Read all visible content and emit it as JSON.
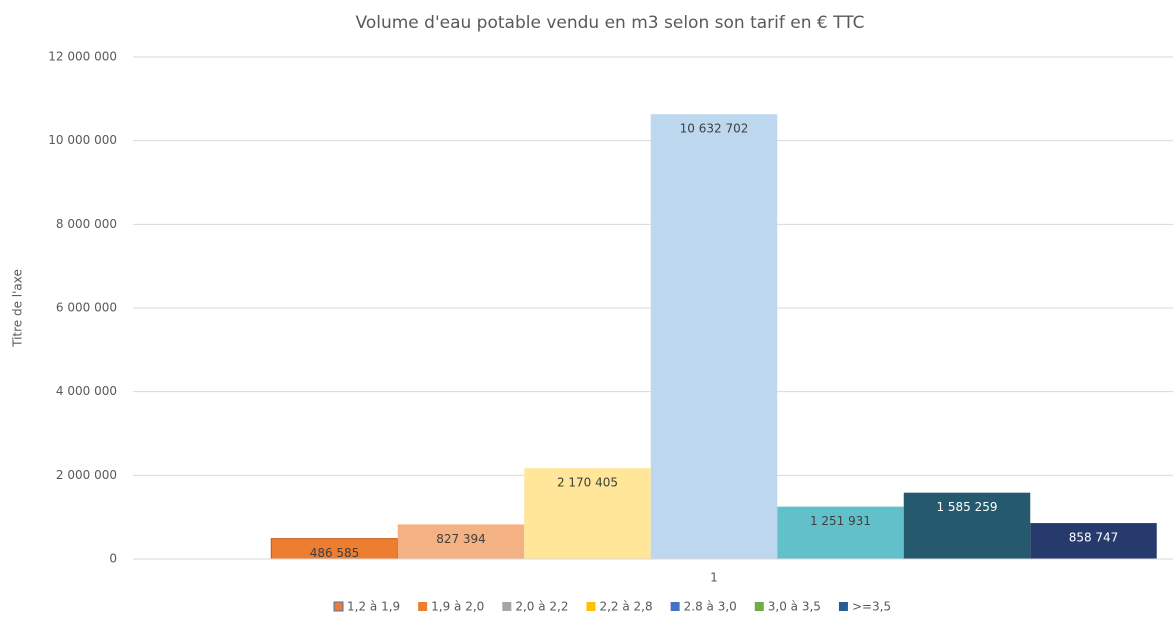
{
  "chart_data": {
    "type": "bar",
    "title": "Volume d'eau potable vendu en m3 selon son tarif en € TTC",
    "y_axis_label": "Titre de l'axe",
    "categories": [
      "1"
    ],
    "series": [
      {
        "name": "1,2 à 1,9",
        "color": "#ed7d31",
        "legend_color": "#ed7d31",
        "values": [
          486585
        ],
        "value_labels": [
          "486 585"
        ]
      },
      {
        "name": "1,9 à 2,0",
        "color": "#f4b183",
        "legend_color": "#ed7d31",
        "values": [
          827394
        ],
        "value_labels": [
          "827 394"
        ]
      },
      {
        "name": "2,0 à 2,2",
        "color": "#ffe699",
        "legend_color": "#a5a5a5",
        "values": [
          2170405
        ],
        "value_labels": [
          "2 170 405"
        ]
      },
      {
        "name": "2,2 à 2,8",
        "color": "#bdd7ee",
        "legend_color": "#ffc000",
        "values": [
          10632702
        ],
        "value_labels": [
          "10 632 702"
        ]
      },
      {
        "name": "2.8 à 3,0",
        "color": "#62c0cb",
        "legend_color": "#4472c4",
        "values": [
          1251931
        ],
        "value_labels": [
          "1 251 931"
        ]
      },
      {
        "name": "3,0 à 3,5",
        "color": "#255a6e",
        "legend_color": "#70ad47",
        "values": [
          1585259
        ],
        "value_labels": [
          "1 585 259"
        ]
      },
      {
        "name": ">=3,5",
        "color": "#263a6e",
        "legend_color": "#255e91",
        "values": [
          858747
        ],
        "value_labels": [
          "858 747"
        ]
      }
    ],
    "ylim": [
      0,
      12000000
    ],
    "yticks": [
      0,
      {
        "value": 2000000,
        "label": "2 000 000"
      },
      {
        "value": 4000000,
        "label": "4 000 000"
      },
      {
        "value": 6000000,
        "label": "6 000 000"
      },
      {
        "value": 8000000,
        "label": "8 000 000"
      },
      {
        "value": 10000000,
        "label": "10 000 000"
      },
      {
        "value": 12000000,
        "label": "12 000 000"
      }
    ],
    "grid": true
  }
}
